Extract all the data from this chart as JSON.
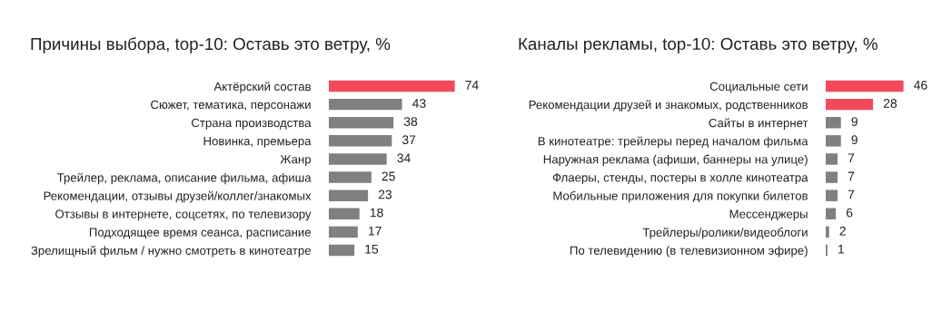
{
  "chart_data": [
    {
      "type": "bar",
      "orientation": "horizontal",
      "title": "Причины выбора, top-10: Оставь это ветру, %",
      "categories": [
        "Актёрский состав",
        "Сюжет, тематика, персонажи",
        "Страна производства",
        "Новинка, премьера",
        "Жанр",
        "Трейлер, реклама, описание фильма, афиша",
        "Рекомендации, отзывы друзей/коллег/знакомых",
        "Отзывы в интернете, соцсетях, по телевизору",
        "Подходящее время сеанса, расписание",
        "Зрелищный фильм / нужно смотреть в кинотеатре"
      ],
      "values": [
        74,
        43,
        38,
        37,
        34,
        25,
        23,
        18,
        17,
        15
      ],
      "colors": [
        "#f24a5a",
        "#808080",
        "#808080",
        "#808080",
        "#808080",
        "#808080",
        "#808080",
        "#808080",
        "#808080",
        "#808080"
      ],
      "data_labels": true,
      "tick_labels": "y",
      "grid": false,
      "legend": false
    },
    {
      "type": "bar",
      "orientation": "horizontal",
      "title": "Каналы рекламы, top-10: Оставь это ветру, %",
      "categories": [
        "Социальные сети",
        "Рекомендации друзей и знакомых, родственников",
        "Сайты в интернет",
        "В кинотеатре: трейлеры перед началом фильма",
        "Наружная реклама (афиши, баннеры на улице)",
        "Флаеры, стенды, постеры в холле кинотеатра",
        "Мобильные приложения для покупки билетов",
        "Мессенджеры",
        "Трейлеры/ролики/видеоблоги",
        "По телевидению (в телевизионном эфире)"
      ],
      "values": [
        46,
        28,
        9,
        9,
        7,
        7,
        7,
        6,
        2,
        1
      ],
      "colors": [
        "#f24a5a",
        "#f24a5a",
        "#808080",
        "#808080",
        "#808080",
        "#808080",
        "#808080",
        "#808080",
        "#808080",
        "#808080"
      ],
      "data_labels": true,
      "tick_labels": "y",
      "grid": false,
      "legend": false
    }
  ]
}
